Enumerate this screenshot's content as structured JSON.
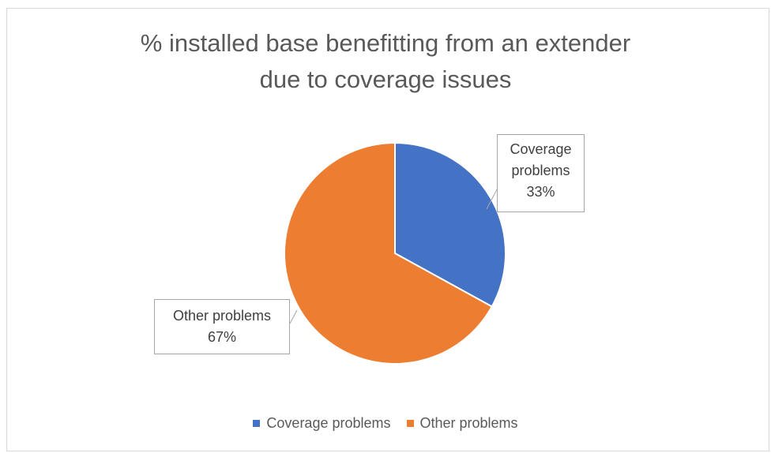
{
  "chart_data": {
    "type": "pie",
    "title_lines": [
      "% installed base benefitting from an extender",
      "due to coverage issues"
    ],
    "series": [
      {
        "name": "Coverage problems",
        "value": 33,
        "label": "33%",
        "color": "#4472C4"
      },
      {
        "name": "Other problems",
        "value": 67,
        "label": "67%",
        "color": "#ED7D31"
      }
    ],
    "callouts": {
      "coverage": {
        "line1": "Coverage",
        "line2": "problems",
        "line3": "33%"
      },
      "other": {
        "line1": "Other problems",
        "line2": "67%"
      }
    },
    "legend": {
      "position": "bottom"
    }
  }
}
